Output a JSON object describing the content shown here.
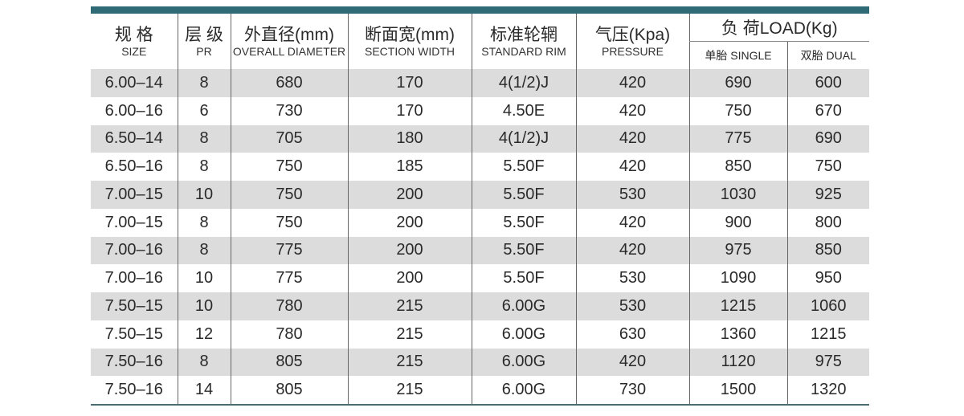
{
  "header": {
    "columns": [
      {
        "zh": "规 格",
        "en": "SIZE"
      },
      {
        "zh": "层 级",
        "en": "PR"
      },
      {
        "zh": "外直径(mm)",
        "en": "OVERALL DIAMETER"
      },
      {
        "zh": "断面宽(mm)",
        "en": "SECTION WIDTH"
      },
      {
        "zh": "标准轮辋",
        "en": "STANDARD RIM"
      },
      {
        "zh": "气压(Kpa)",
        "en": "PRESSURE"
      }
    ],
    "load": {
      "title": "负 荷LOAD(Kg)",
      "sub": [
        "单胎 SINGLE",
        "双胎 DUAL"
      ]
    }
  },
  "table": {
    "rows": [
      [
        "6.00–14",
        "8",
        "680",
        "170",
        "4(1/2)J",
        "420",
        "690",
        "600"
      ],
      [
        "6.00–16",
        "6",
        "730",
        "170",
        "4.50E",
        "420",
        "750",
        "670"
      ],
      [
        "6.50–14",
        "8",
        "705",
        "180",
        "4(1/2)J",
        "420",
        "775",
        "690"
      ],
      [
        "6.50–16",
        "8",
        "750",
        "185",
        "5.50F",
        "420",
        "850",
        "750"
      ],
      [
        "7.00–15",
        "10",
        "750",
        "200",
        "5.50F",
        "530",
        "1030",
        "925"
      ],
      [
        "7.00–15",
        "8",
        "750",
        "200",
        "5.50F",
        "420",
        "900",
        "800"
      ],
      [
        "7.00–16",
        "8",
        "775",
        "200",
        "5.50F",
        "420",
        "975",
        "850"
      ],
      [
        "7.00–16",
        "10",
        "775",
        "200",
        "5.50F",
        "530",
        "1090",
        "950"
      ],
      [
        "7.50–15",
        "10",
        "780",
        "215",
        "6.00G",
        "530",
        "1215",
        "1060"
      ],
      [
        "7.50–15",
        "12",
        "780",
        "215",
        "6.00G",
        "630",
        "1360",
        "1215"
      ],
      [
        "7.50–16",
        "8",
        "805",
        "215",
        "6.00G",
        "420",
        "1120",
        "975"
      ],
      [
        "7.50–16",
        "14",
        "805",
        "215",
        "6.00G",
        "730",
        "1500",
        "1320"
      ]
    ]
  }
}
